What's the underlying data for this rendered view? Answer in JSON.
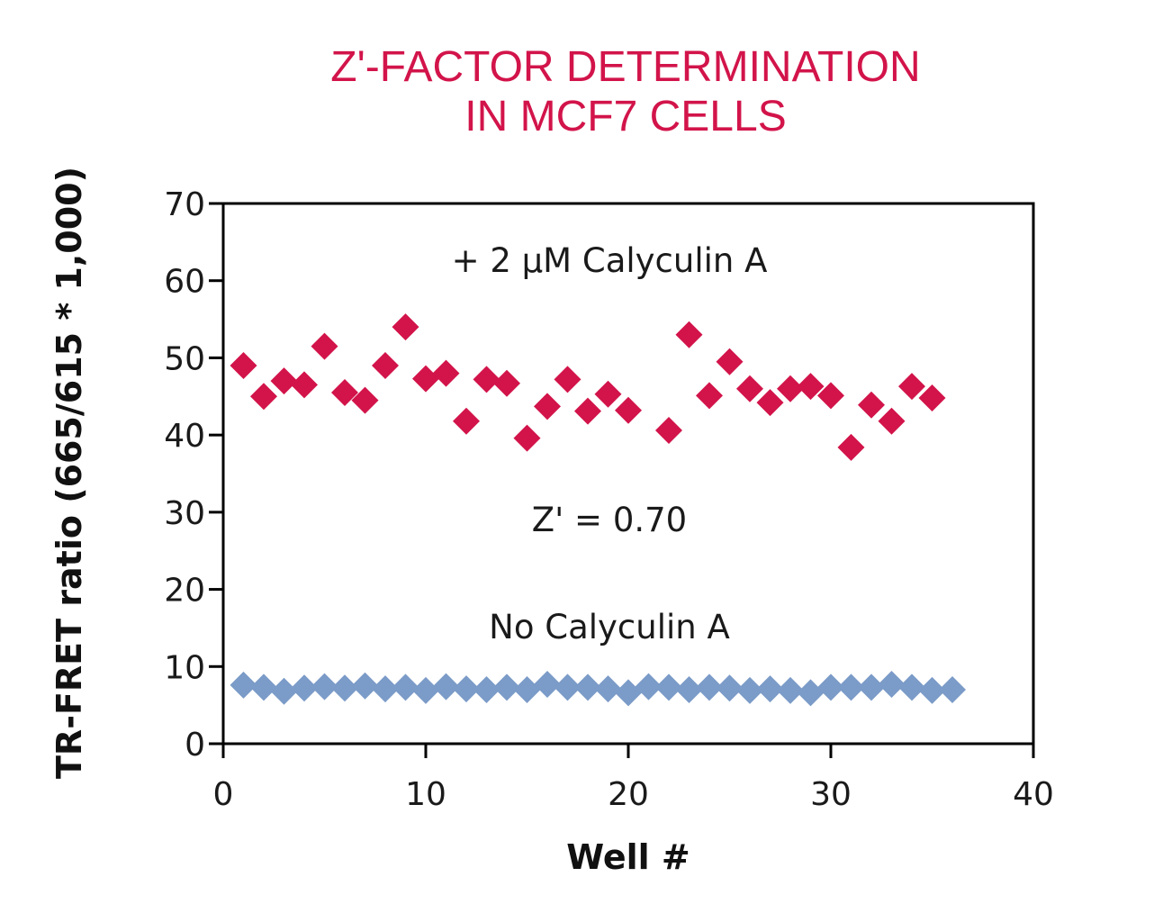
{
  "colors": {
    "series_treated": "#d2144a",
    "series_control": "#7b9bc8",
    "title": "#d2144a",
    "axis": "#000000",
    "background": "#ffffff"
  },
  "chart_data": {
    "type": "scatter",
    "title_lines": [
      "Z'-FACTOR DETERMINATION",
      "IN MCF7 CELLS"
    ],
    "xlabel": "Well #",
    "ylabel": "TR-FRET ratio (665/615 * 1,000)",
    "xlim": [
      0,
      40
    ],
    "ylim": [
      0,
      70
    ],
    "xticks": [
      0,
      10,
      20,
      30,
      40
    ],
    "yticks": [
      0,
      10,
      20,
      30,
      40,
      50,
      60,
      70
    ],
    "grid": false,
    "legend": "none",
    "marker": "diamond",
    "annotations": [
      "+ 2 µM Calyculin A",
      "Z' = 0.70",
      "No Calyculin A"
    ],
    "series": [
      {
        "color_key": "series_treated",
        "points": [
          [
            1,
            49
          ],
          [
            2,
            45
          ],
          [
            3,
            47
          ],
          [
            4,
            46.5
          ],
          [
            5,
            51.5
          ],
          [
            6,
            45.5
          ],
          [
            7,
            44.5
          ],
          [
            8,
            49
          ],
          [
            9,
            54
          ],
          [
            10,
            47.3
          ],
          [
            11,
            48
          ],
          [
            12,
            41.8
          ],
          [
            13,
            47.2
          ],
          [
            14,
            46.7
          ],
          [
            15,
            39.6
          ],
          [
            16,
            43.7
          ],
          [
            17,
            47.2
          ],
          [
            18,
            43.1
          ],
          [
            19,
            45.3
          ],
          [
            20,
            43.2
          ],
          [
            22,
            40.6
          ],
          [
            23,
            53
          ],
          [
            24,
            45.1
          ],
          [
            25,
            49.5
          ],
          [
            26,
            46
          ],
          [
            27,
            44.2
          ],
          [
            28,
            46
          ],
          [
            29,
            46.3
          ],
          [
            30,
            45.1
          ],
          [
            31,
            38.4
          ],
          [
            32,
            43.9
          ],
          [
            33,
            41.8
          ],
          [
            34,
            46.3
          ],
          [
            35,
            44.8
          ]
        ]
      },
      {
        "color_key": "series_control",
        "points": [
          [
            1,
            7.6
          ],
          [
            2,
            7.3
          ],
          [
            3,
            6.8
          ],
          [
            4,
            7.2
          ],
          [
            5,
            7.4
          ],
          [
            6,
            7.2
          ],
          [
            7,
            7.5
          ],
          [
            8,
            7.1
          ],
          [
            9,
            7.3
          ],
          [
            10,
            6.9
          ],
          [
            11,
            7.4
          ],
          [
            12,
            7.1
          ],
          [
            13,
            7
          ],
          [
            14,
            7.3
          ],
          [
            15,
            7
          ],
          [
            16,
            7.7
          ],
          [
            17,
            7.3
          ],
          [
            18,
            7.3
          ],
          [
            19,
            7.1
          ],
          [
            20,
            6.6
          ],
          [
            21,
            7.4
          ],
          [
            22,
            7.3
          ],
          [
            23,
            7
          ],
          [
            24,
            7.3
          ],
          [
            25,
            7.2
          ],
          [
            26,
            6.9
          ],
          [
            27,
            7.1
          ],
          [
            28,
            6.9
          ],
          [
            29,
            6.6
          ],
          [
            30,
            7.3
          ],
          [
            31,
            7.3
          ],
          [
            32,
            7.3
          ],
          [
            33,
            7.7
          ],
          [
            34,
            7.3
          ],
          [
            35,
            6.9
          ],
          [
            36,
            7
          ]
        ]
      }
    ]
  }
}
